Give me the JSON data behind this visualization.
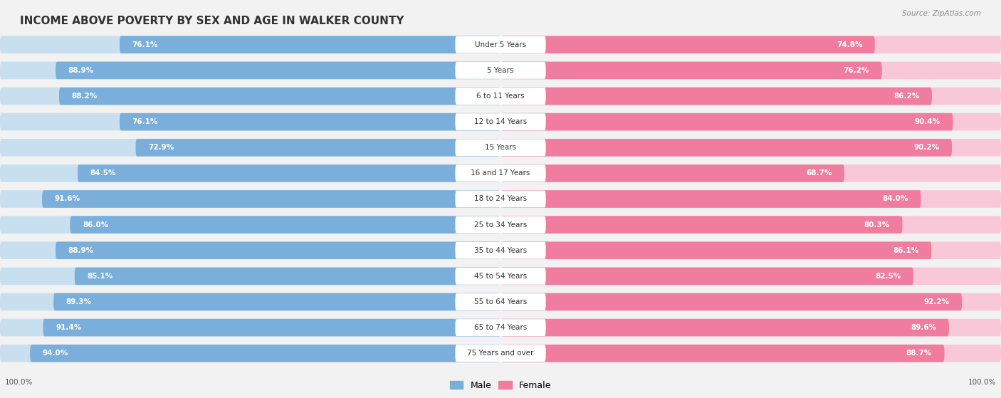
{
  "title": "INCOME ABOVE POVERTY BY SEX AND AGE IN WALKER COUNTY",
  "source": "Source: ZipAtlas.com",
  "categories": [
    "Under 5 Years",
    "5 Years",
    "6 to 11 Years",
    "12 to 14 Years",
    "15 Years",
    "16 and 17 Years",
    "18 to 24 Years",
    "25 to 34 Years",
    "35 to 44 Years",
    "45 to 54 Years",
    "55 to 64 Years",
    "65 to 74 Years",
    "75 Years and over"
  ],
  "male_values": [
    76.1,
    88.9,
    88.2,
    76.1,
    72.9,
    84.5,
    91.6,
    86.0,
    88.9,
    85.1,
    89.3,
    91.4,
    94.0
  ],
  "female_values": [
    74.8,
    76.2,
    86.2,
    90.4,
    90.2,
    68.7,
    84.0,
    80.3,
    86.1,
    82.5,
    92.2,
    89.6,
    88.7
  ],
  "male_color": "#7aaedb",
  "female_color": "#f07ca0",
  "male_light_color": "#c8dff0",
  "female_light_color": "#f9c8d8",
  "bar_bg_color": "#e8e8e8",
  "bg_color": "#f2f2f2",
  "title_fontsize": 11,
  "label_fontsize": 7.5,
  "value_fontsize": 7.5,
  "source_fontsize": 7.5
}
